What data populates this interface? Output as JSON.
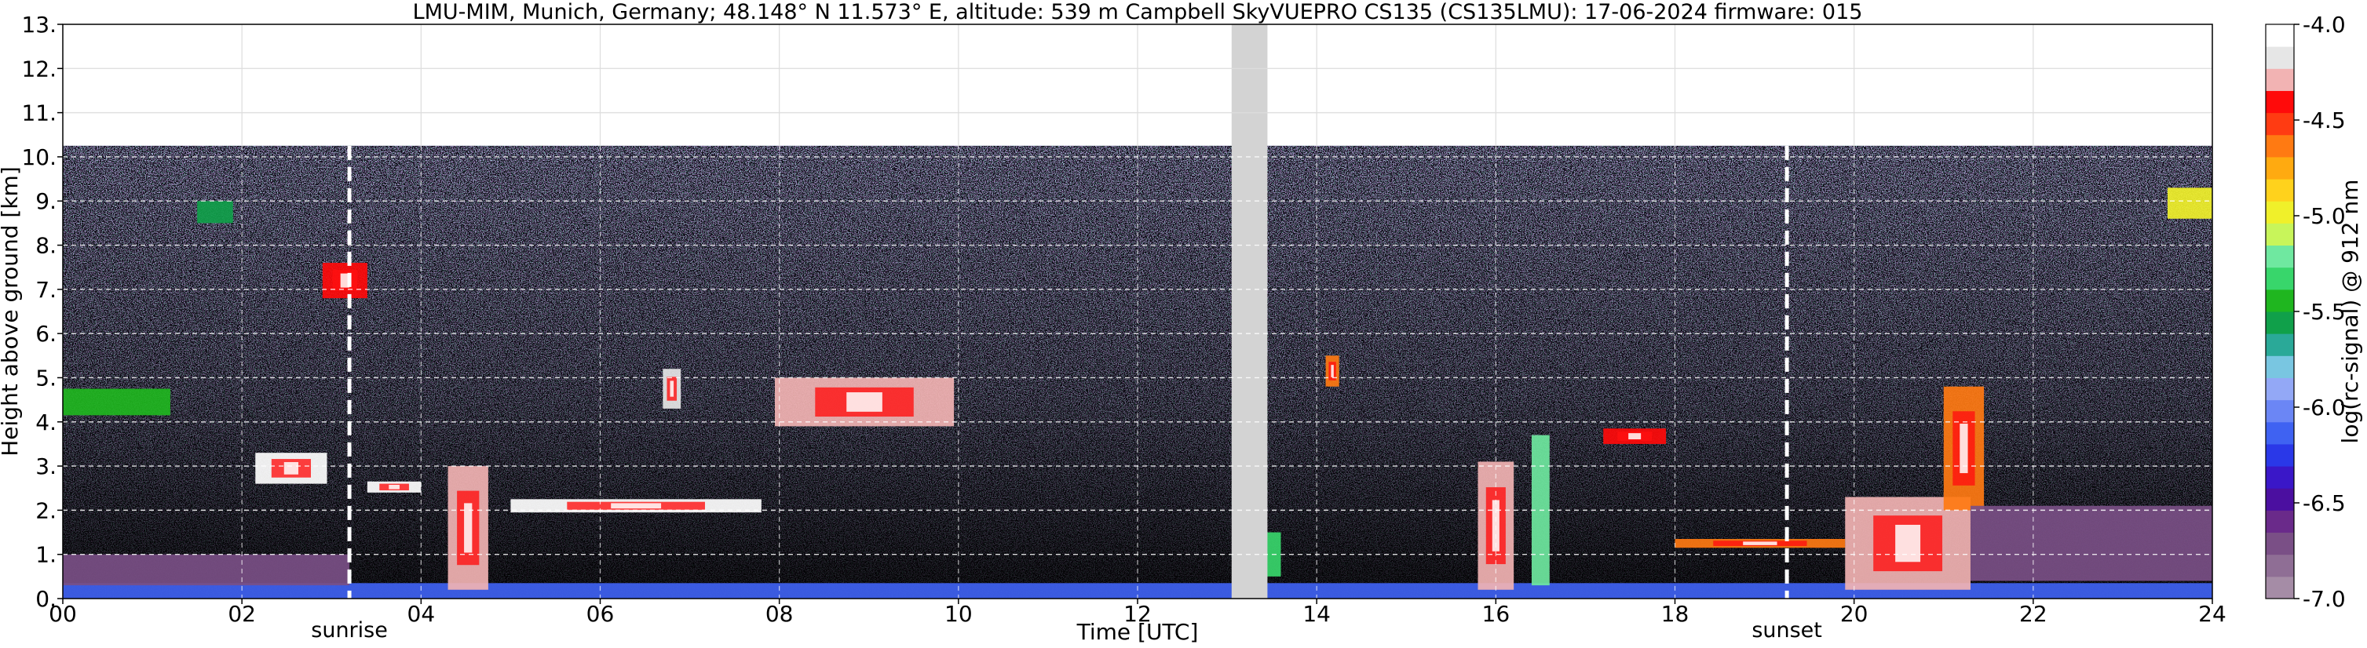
{
  "chart_data": {
    "type": "heatmap",
    "title": "LMU-MIM, Munich, Germany; 48.148° N 11.573° E, altitude: 539 m    Campbell SkyVUEPRO CS135 (CS135LMU): 17-06-2024    firmware: 015",
    "xlabel": "Time [UTC]",
    "ylabel": "Height above ground [km]",
    "colorbar_label": "log(rc-signal) @ 912 nm",
    "xlim": [
      0,
      24
    ],
    "ylim": [
      0,
      13
    ],
    "x_ticks": [
      "00",
      "02",
      "04",
      "06",
      "08",
      "10",
      "12",
      "14",
      "16",
      "18",
      "20",
      "22",
      "24"
    ],
    "x_tick_values": [
      0,
      2,
      4,
      6,
      8,
      10,
      12,
      14,
      16,
      18,
      20,
      22,
      24
    ],
    "y_ticks": [
      "0.",
      "1.",
      "2.",
      "3.",
      "4.",
      "5.",
      "6.",
      "7.",
      "8.",
      "9.",
      "10.",
      "11.",
      "12.",
      "13."
    ],
    "y_tick_values": [
      0,
      1,
      2,
      3,
      4,
      5,
      6,
      7,
      8,
      9,
      10,
      11,
      12,
      13
    ],
    "colorbar_ticks": [
      "-4.0",
      "-4.5",
      "-5.0",
      "-5.5",
      "-6.0",
      "-6.5",
      "-7.0"
    ],
    "colorbar_tick_values": [
      -4.0,
      -4.5,
      -5.0,
      -5.5,
      -6.0,
      -6.5,
      -7.0
    ],
    "colorbar_range": [
      -7.0,
      -4.0
    ],
    "colorbar_colors": [
      "#a58ca6",
      "#8f6e95",
      "#7a4f86",
      "#6a2a8a",
      "#4b0fa0",
      "#3a17c8",
      "#2a38e8",
      "#3f62f2",
      "#6b86f5",
      "#93a8f6",
      "#79c6e1",
      "#2aa998",
      "#10a04a",
      "#1fb61f",
      "#38d66b",
      "#6fe8a0",
      "#c8f55a",
      "#f0f02a",
      "#ffd21c",
      "#ffaa10",
      "#ff7a12",
      "#ff3b12",
      "#ff0a0a",
      "#f2b3b3",
      "#e6e6e6",
      "#ffffff"
    ],
    "signal_top_km": 10.25,
    "grid": true,
    "data_gap": [
      13.05,
      13.45
    ],
    "events": [
      {
        "label": "sunrise",
        "time": 3.2
      },
      {
        "label": "sunset",
        "time": 19.25
      }
    ],
    "features": [
      {
        "time_start": 0.0,
        "time_end": 24.0,
        "height_bottom_km": 0.0,
        "height_top_km": 0.35,
        "log_signal": -6.1
      },
      {
        "time_start": 0.0,
        "time_end": 3.2,
        "height_bottom_km": 0.3,
        "height_top_km": 1.0,
        "log_signal": -6.7
      },
      {
        "time_start": 0.0,
        "time_end": 1.2,
        "height_bottom_km": 4.15,
        "height_top_km": 4.75,
        "log_signal": -5.4
      },
      {
        "time_start": 1.5,
        "time_end": 1.9,
        "height_bottom_km": 8.5,
        "height_top_km": 9.0,
        "log_signal": -5.6
      },
      {
        "time_start": 2.15,
        "time_end": 2.95,
        "height_bottom_km": 2.6,
        "height_top_km": 3.3,
        "log_signal": -4.1
      },
      {
        "time_start": 2.9,
        "time_end": 3.4,
        "height_bottom_km": 6.8,
        "height_top_km": 7.6,
        "log_signal": -4.4
      },
      {
        "time_start": 3.4,
        "time_end": 4.0,
        "height_bottom_km": 2.4,
        "height_top_km": 2.65,
        "log_signal": -4.1
      },
      {
        "time_start": 4.3,
        "time_end": 4.75,
        "height_bottom_km": 0.2,
        "height_top_km": 3.0,
        "log_signal": -4.3
      },
      {
        "time_start": 5.0,
        "time_end": 7.8,
        "height_bottom_km": 1.95,
        "height_top_km": 2.25,
        "log_signal": -4.1
      },
      {
        "time_start": 6.7,
        "time_end": 6.9,
        "height_bottom_km": 4.3,
        "height_top_km": 5.2,
        "log_signal": -4.2
      },
      {
        "time_start": 7.95,
        "time_end": 9.95,
        "height_bottom_km": 3.9,
        "height_top_km": 5.0,
        "log_signal": -4.3
      },
      {
        "time_start": 13.4,
        "time_end": 13.6,
        "height_bottom_km": 0.5,
        "height_top_km": 1.5,
        "log_signal": -5.3
      },
      {
        "time_start": 14.1,
        "time_end": 14.25,
        "height_bottom_km": 4.8,
        "height_top_km": 5.5,
        "log_signal": -4.6
      },
      {
        "time_start": 15.8,
        "time_end": 16.2,
        "height_bottom_km": 0.2,
        "height_top_km": 3.1,
        "log_signal": -4.3
      },
      {
        "time_start": 16.4,
        "time_end": 16.6,
        "height_bottom_km": 0.3,
        "height_top_km": 3.7,
        "log_signal": -5.2
      },
      {
        "time_start": 17.2,
        "time_end": 17.9,
        "height_bottom_km": 3.5,
        "height_top_km": 3.85,
        "log_signal": -4.4
      },
      {
        "time_start": 18.0,
        "time_end": 19.9,
        "height_bottom_km": 1.15,
        "height_top_km": 1.35,
        "log_signal": -4.6
      },
      {
        "time_start": 19.9,
        "time_end": 21.3,
        "height_bottom_km": 0.2,
        "height_top_km": 2.3,
        "log_signal": -4.3
      },
      {
        "time_start": 21.0,
        "time_end": 21.45,
        "height_bottom_km": 2.0,
        "height_top_km": 4.8,
        "log_signal": -4.6
      },
      {
        "time_start": 21.3,
        "time_end": 24.0,
        "height_bottom_km": 0.4,
        "height_top_km": 2.1,
        "log_signal": -6.7
      },
      {
        "time_start": 23.5,
        "time_end": 24.0,
        "height_bottom_km": 8.6,
        "height_top_km": 9.3,
        "log_signal": -5.0
      }
    ]
  }
}
